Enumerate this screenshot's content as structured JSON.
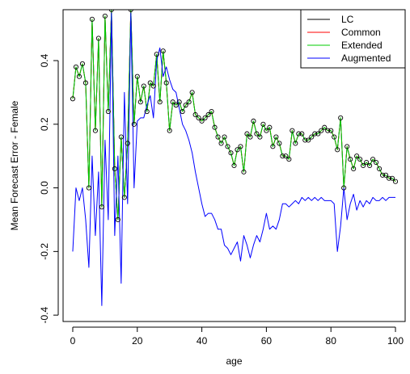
{
  "chart_data": {
    "type": "line",
    "xlabel": "age",
    "ylabel": "Mean Forecast Error - Female",
    "xlim": [
      -3,
      103
    ],
    "ylim": [
      -0.42,
      0.56
    ],
    "xticks": [
      0,
      20,
      40,
      60,
      80,
      100
    ],
    "yticks": [
      -0.4,
      -0.2,
      0.0,
      0.2,
      0.4
    ],
    "ytick_labels": [
      "-0.4",
      "-0.2",
      "0.0",
      "0.2",
      "0.4"
    ],
    "legend_position": "top-right",
    "x": [
      0,
      1,
      2,
      3,
      4,
      5,
      6,
      7,
      8,
      9,
      10,
      11,
      12,
      13,
      14,
      15,
      16,
      17,
      18,
      19,
      20,
      21,
      22,
      23,
      24,
      25,
      26,
      27,
      28,
      29,
      30,
      31,
      32,
      33,
      34,
      35,
      36,
      37,
      38,
      39,
      40,
      41,
      42,
      43,
      44,
      45,
      46,
      47,
      48,
      49,
      50,
      51,
      52,
      53,
      54,
      55,
      56,
      57,
      58,
      59,
      60,
      61,
      62,
      63,
      64,
      65,
      66,
      67,
      68,
      69,
      70,
      71,
      72,
      73,
      74,
      75,
      76,
      77,
      78,
      79,
      80,
      81,
      82,
      83,
      84,
      85,
      86,
      87,
      88,
      89,
      90,
      91,
      92,
      93,
      94,
      95,
      96,
      97,
      98,
      99,
      100
    ],
    "series": [
      {
        "name": "LC",
        "color": "#000000",
        "markers": true,
        "values": [
          0.28,
          0.38,
          0.35,
          0.39,
          0.33,
          0.0,
          0.53,
          0.18,
          0.47,
          -0.06,
          0.54,
          0.24,
          0.56,
          0.06,
          -0.1,
          0.16,
          -0.03,
          0.14,
          0.56,
          0.2,
          0.35,
          0.27,
          0.32,
          0.24,
          0.33,
          0.32,
          0.42,
          0.27,
          0.43,
          0.33,
          0.18,
          0.27,
          0.26,
          0.27,
          0.24,
          0.26,
          0.27,
          0.3,
          0.23,
          0.22,
          0.21,
          0.22,
          0.23,
          0.24,
          0.19,
          0.16,
          0.14,
          0.16,
          0.13,
          0.11,
          0.07,
          0.12,
          0.13,
          0.05,
          0.17,
          0.16,
          0.21,
          0.17,
          0.16,
          0.2,
          0.18,
          0.19,
          0.13,
          0.16,
          0.14,
          0.1,
          0.1,
          0.09,
          0.18,
          0.14,
          0.17,
          0.17,
          0.15,
          0.15,
          0.16,
          0.17,
          0.17,
          0.18,
          0.19,
          0.18,
          0.18,
          0.16,
          0.12,
          0.22,
          0.0,
          0.13,
          0.09,
          0.06,
          0.1,
          0.09,
          0.07,
          0.08,
          0.07,
          0.09,
          0.08,
          0.06,
          0.04,
          0.04,
          0.03,
          0.03,
          0.02
        ]
      },
      {
        "name": "Common",
        "color": "#ff0000",
        "markers": false,
        "values": [
          0.28,
          0.38,
          0.35,
          0.39,
          0.33,
          0.0,
          0.53,
          0.18,
          0.47,
          -0.06,
          0.54,
          0.24,
          0.56,
          0.06,
          -0.1,
          0.16,
          -0.03,
          0.14,
          0.56,
          0.2,
          0.35,
          0.27,
          0.32,
          0.24,
          0.33,
          0.32,
          0.42,
          0.27,
          0.43,
          0.33,
          0.18,
          0.27,
          0.26,
          0.27,
          0.24,
          0.26,
          0.27,
          0.3,
          0.23,
          0.22,
          0.21,
          0.22,
          0.23,
          0.24,
          0.19,
          0.16,
          0.14,
          0.16,
          0.13,
          0.11,
          0.07,
          0.12,
          0.13,
          0.05,
          0.17,
          0.16,
          0.21,
          0.17,
          0.16,
          0.2,
          0.18,
          0.19,
          0.13,
          0.16,
          0.14,
          0.1,
          0.1,
          0.09,
          0.18,
          0.14,
          0.17,
          0.17,
          0.15,
          0.15,
          0.16,
          0.17,
          0.17,
          0.18,
          0.19,
          0.18,
          0.18,
          0.16,
          0.12,
          0.22,
          0.0,
          0.13,
          0.09,
          0.06,
          0.1,
          0.09,
          0.07,
          0.08,
          0.07,
          0.09,
          0.08,
          0.06,
          0.04,
          0.04,
          0.03,
          0.03,
          0.02
        ]
      },
      {
        "name": "Extended",
        "color": "#00cc00",
        "markers": false,
        "values": [
          0.28,
          0.38,
          0.35,
          0.39,
          0.33,
          0.0,
          0.53,
          0.18,
          0.47,
          -0.06,
          0.54,
          0.24,
          0.56,
          0.06,
          -0.1,
          0.16,
          -0.03,
          0.14,
          0.56,
          0.2,
          0.35,
          0.27,
          0.32,
          0.24,
          0.33,
          0.32,
          0.42,
          0.27,
          0.43,
          0.33,
          0.18,
          0.27,
          0.26,
          0.27,
          0.24,
          0.26,
          0.27,
          0.3,
          0.23,
          0.22,
          0.21,
          0.22,
          0.23,
          0.24,
          0.19,
          0.16,
          0.14,
          0.16,
          0.13,
          0.11,
          0.07,
          0.12,
          0.13,
          0.05,
          0.17,
          0.16,
          0.21,
          0.17,
          0.16,
          0.2,
          0.18,
          0.19,
          0.13,
          0.16,
          0.14,
          0.1,
          0.1,
          0.09,
          0.18,
          0.14,
          0.17,
          0.17,
          0.15,
          0.15,
          0.16,
          0.17,
          0.17,
          0.18,
          0.19,
          0.18,
          0.18,
          0.16,
          0.12,
          0.22,
          0.0,
          0.13,
          0.09,
          0.06,
          0.1,
          0.09,
          0.07,
          0.08,
          0.07,
          0.09,
          0.08,
          0.06,
          0.04,
          0.04,
          0.03,
          0.03,
          0.02
        ]
      },
      {
        "name": "Augmented",
        "color": "#0000ff",
        "markers": false,
        "values": [
          -0.2,
          0.0,
          -0.04,
          0.0,
          -0.1,
          -0.25,
          0.1,
          -0.15,
          0.05,
          -0.37,
          0.15,
          -0.1,
          0.55,
          -0.15,
          0.1,
          -0.3,
          0.3,
          -0.05,
          0.55,
          0.0,
          0.21,
          0.22,
          0.22,
          0.26,
          0.29,
          0.22,
          0.4,
          0.44,
          0.35,
          0.38,
          0.34,
          0.31,
          0.3,
          0.25,
          0.2,
          0.18,
          0.15,
          0.11,
          0.05,
          0.0,
          -0.05,
          -0.09,
          -0.08,
          -0.08,
          -0.1,
          -0.13,
          -0.13,
          -0.18,
          -0.19,
          -0.21,
          -0.19,
          -0.17,
          -0.23,
          -0.15,
          -0.18,
          -0.22,
          -0.18,
          -0.15,
          -0.17,
          -0.13,
          -0.08,
          -0.13,
          -0.12,
          -0.13,
          -0.1,
          -0.05,
          -0.05,
          -0.06,
          -0.05,
          -0.04,
          -0.05,
          -0.03,
          -0.04,
          -0.03,
          -0.04,
          -0.03,
          -0.04,
          -0.03,
          -0.04,
          -0.04,
          -0.04,
          -0.05,
          -0.2,
          -0.12,
          0.0,
          -0.1,
          -0.05,
          -0.02,
          -0.07,
          -0.04,
          -0.06,
          -0.04,
          -0.05,
          -0.03,
          -0.04,
          -0.04,
          -0.03,
          -0.04,
          -0.03,
          -0.03,
          -0.03
        ]
      }
    ]
  }
}
